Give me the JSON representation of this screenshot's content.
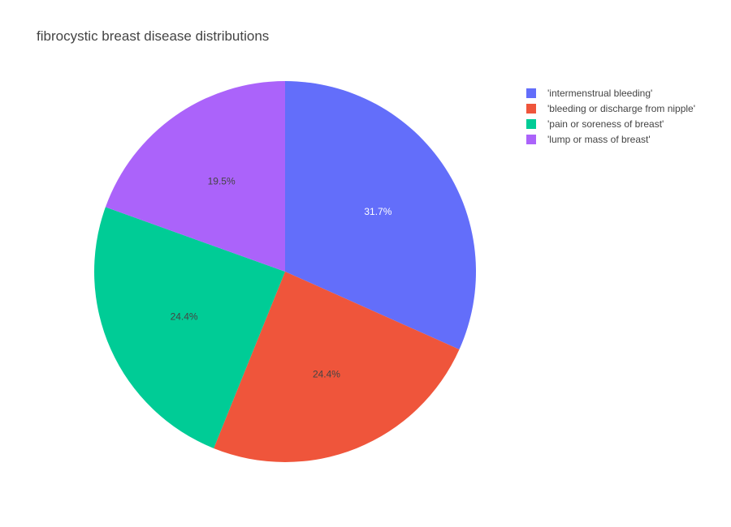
{
  "chart_data": {
    "type": "pie",
    "title": "fibrocystic breast disease distributions",
    "labels": [
      "'intermenstrual bleeding'",
      "'bleeding or discharge from nipple'",
      "'pain or soreness of breast'",
      "'lump or mass of breast'"
    ],
    "values": [
      31.7,
      24.4,
      24.4,
      19.5
    ],
    "value_labels": [
      "31.7%",
      "24.4%",
      "24.4%",
      "19.5%"
    ],
    "colors": [
      "#636efa",
      "#ef553b",
      "#00cc96",
      "#ab63fa"
    ],
    "label_colors": [
      "#ffffff",
      "#444444",
      "#444444",
      "#444444"
    ],
    "legend_placement": "top-right"
  }
}
